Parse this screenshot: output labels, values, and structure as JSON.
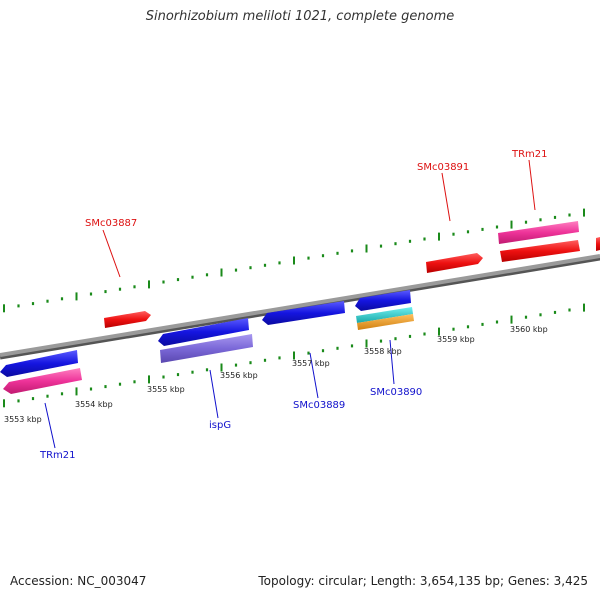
{
  "title": "Sinorhizobium meliloti 1021, complete genome",
  "footer": {
    "accession": "Accession: NC_003047",
    "summary": "Topology: circular; Length: 3,654,135 bp; Genes: 3,425"
  },
  "colors": {
    "backbone": "#808080",
    "tick": "#1a8a1a",
    "cds_forward": "#ee1111",
    "cds_reverse": "#1515e0",
    "rrna": "#ee3399",
    "cds_lavender": "#7b68d8",
    "gene_cyan": "#22c8c8",
    "gene_orange": "#f0a020",
    "label_forward": "#dd1111",
    "label_reverse": "#1111cc"
  },
  "kbp_labels": [
    "3553 kbp",
    "3554 kbp",
    "3555 kbp",
    "3556 kbp",
    "3557 kbp",
    "3558 kbp",
    "3559 kbp",
    "3560 kbp"
  ],
  "forward_labels": [
    "SMc03887",
    "SMc03891",
    "TRm21"
  ],
  "reverse_labels": [
    "TRm21",
    "ispG",
    "SMc03889",
    "SMc03890"
  ]
}
